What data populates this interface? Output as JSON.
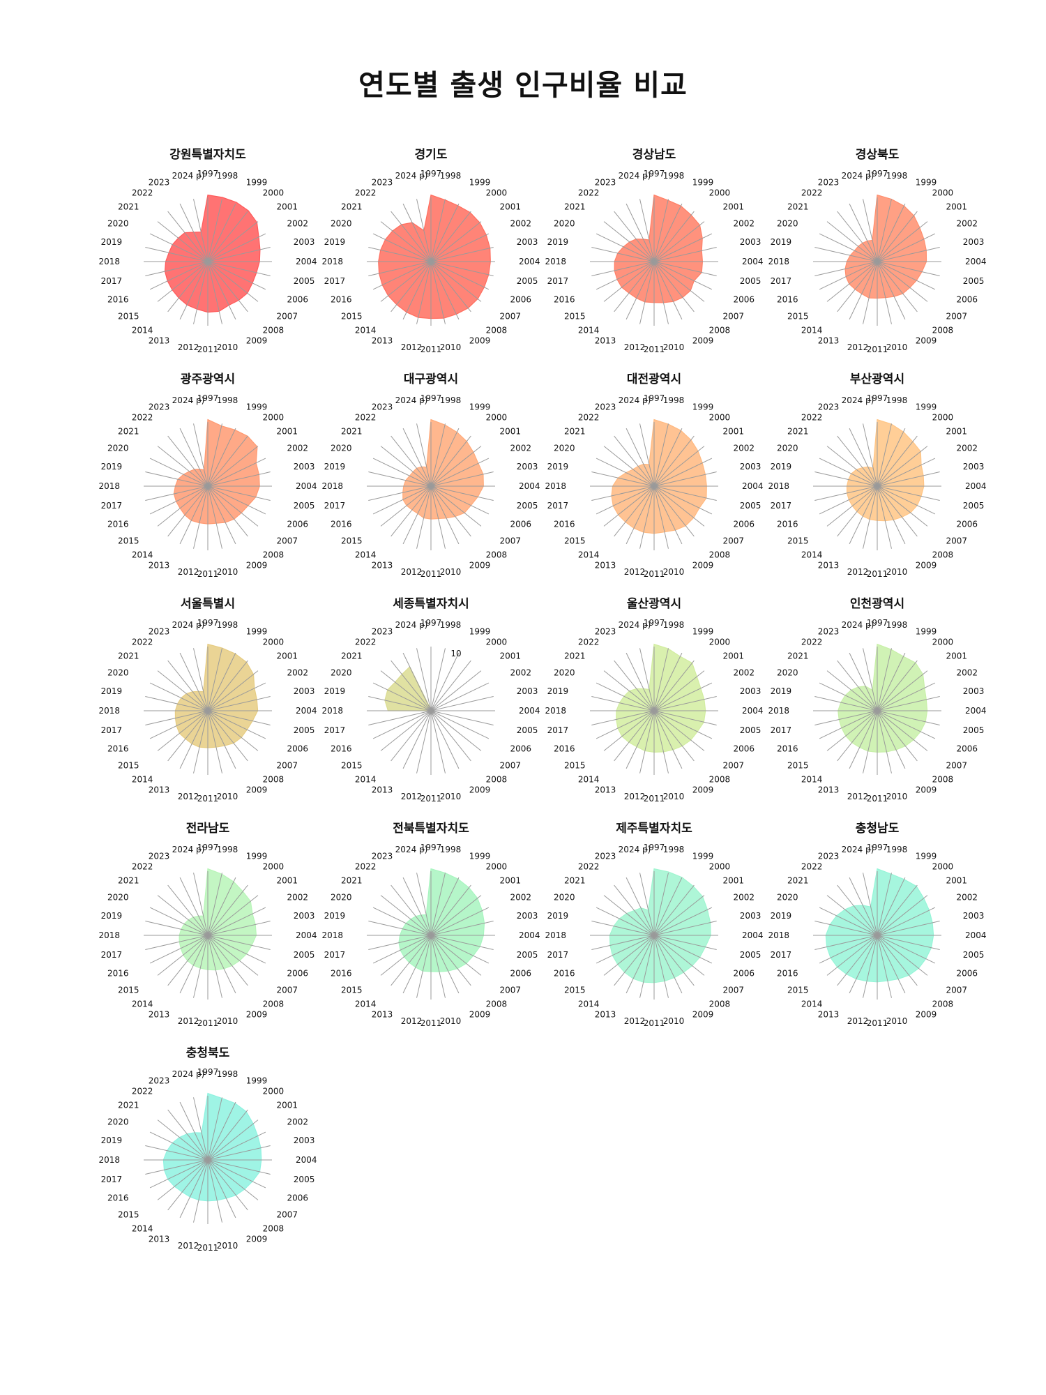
{
  "title": "연도별 출생 인구비율 비교",
  "years": [
    "1997",
    "1998",
    "1999",
    "2000",
    "2001",
    "2002",
    "2003",
    "2004",
    "2005",
    "2006",
    "2007",
    "2008",
    "2009",
    "2010",
    "2011",
    "2012",
    "2013",
    "2014",
    "2015",
    "2016",
    "2017",
    "2018",
    "2019",
    "2020",
    "2021",
    "2022",
    "2023",
    "2024 p)"
  ],
  "chart_data": {
    "type": "radar",
    "title": "연도별 출생 인구비율 비교",
    "ylim": [
      0,
      10
    ],
    "radial_tick_label": "10",
    "radial_tick_panel": "세종특별자치시",
    "categories": [
      "1997",
      "1998",
      "1999",
      "2000",
      "2001",
      "2002",
      "2003",
      "2004",
      "2005",
      "2006",
      "2007",
      "2008",
      "2009",
      "2010",
      "2011",
      "2012",
      "2013",
      "2014",
      "2015",
      "2016",
      "2017",
      "2018",
      "2019",
      "2020",
      "2021",
      "2022",
      "2023",
      "2024 p)"
    ],
    "panels": [
      {
        "name": "강원특별자치도",
        "color": "#ff5a5a",
        "values": [
          1.8,
          1.78,
          1.78,
          1.76,
          1.7,
          1.53,
          1.45,
          1.4,
          1.35,
          1.34,
          1.37,
          1.34,
          1.31,
          1.38,
          1.37,
          1.32,
          1.3,
          1.26,
          1.23,
          1.21,
          1.19,
          1.14,
          1.08,
          1.06,
          1.02,
          1.0,
          0.88,
          0.82
        ]
      },
      {
        "name": "경기도",
        "color": "#ff6e5f",
        "values": [
          1.8,
          1.71,
          1.68,
          1.7,
          1.69,
          1.66,
          1.64,
          1.61,
          1.6,
          1.6,
          1.62,
          1.61,
          1.58,
          1.57,
          1.54,
          1.55,
          1.52,
          1.49,
          1.48,
          1.46,
          1.44,
          1.42,
          1.4,
          1.37,
          1.33,
          1.28,
          1.17,
          0.86
        ]
      },
      {
        "name": "경상남도",
        "color": "#ff7f66",
        "values": [
          1.8,
          1.7,
          1.67,
          1.61,
          1.58,
          1.45,
          1.32,
          1.31,
          1.32,
          1.2,
          1.26,
          1.24,
          1.2,
          1.14,
          1.11,
          1.12,
          1.1,
          1.09,
          1.12,
          1.11,
          1.1,
          1.07,
          1.01,
          0.92,
          0.85,
          0.78,
          0.67,
          0.6
        ]
      },
      {
        "name": "경상북도",
        "color": "#ff8f6e",
        "values": [
          1.8,
          1.73,
          1.67,
          1.59,
          1.47,
          1.4,
          1.36,
          1.33,
          1.24,
          1.18,
          1.13,
          1.11,
          1.05,
          1.0,
          0.99,
          1.01,
          0.97,
          0.96,
          0.97,
          0.94,
          0.89,
          0.82,
          0.75,
          0.68,
          0.66,
          0.64,
          0.62,
          0.59
        ]
      },
      {
        "name": "광주광역시",
        "color": "#ff9a72",
        "values": [
          1.8,
          1.67,
          1.69,
          1.73,
          1.71,
          1.45,
          1.42,
          1.4,
          1.33,
          1.21,
          1.16,
          1.14,
          1.09,
          1.03,
          1.02,
          1.02,
          1.03,
          1.0,
          0.96,
          0.95,
          0.94,
          0.88,
          0.83,
          0.73,
          0.64,
          0.58,
          0.51,
          0.45
        ]
      },
      {
        "name": "대구광역시",
        "color": "#ffaa7a",
        "values": [
          1.8,
          1.7,
          1.62,
          1.55,
          1.47,
          1.42,
          1.45,
          1.42,
          1.3,
          1.2,
          1.16,
          1.05,
          0.96,
          0.9,
          0.89,
          0.88,
          0.82,
          0.82,
          0.84,
          0.84,
          0.78,
          0.74,
          0.7,
          0.64,
          0.62,
          0.62,
          0.58,
          0.53
        ]
      },
      {
        "name": "대전광역시",
        "color": "#ffb980",
        "values": [
          1.8,
          1.72,
          1.67,
          1.6,
          1.52,
          1.45,
          1.42,
          1.42,
          1.45,
          1.36,
          1.37,
          1.37,
          1.32,
          1.27,
          1.28,
          1.28,
          1.26,
          1.24,
          1.24,
          1.23,
          1.18,
          1.12,
          1.0,
          0.84,
          0.73,
          0.69,
          0.66,
          0.6
        ]
      },
      {
        "name": "부산광역시",
        "color": "#ffc585",
        "values": [
          1.8,
          1.72,
          1.63,
          1.54,
          1.5,
          1.32,
          1.28,
          1.26,
          1.22,
          1.2,
          1.15,
          1.07,
          1.01,
          0.96,
          0.93,
          0.92,
          0.9,
          0.88,
          0.86,
          0.85,
          0.84,
          0.82,
          0.8,
          0.78,
          0.72,
          0.64,
          0.58,
          0.5
        ]
      },
      {
        "name": "서울특별시",
        "color": "#e6cc82",
        "values": [
          1.8,
          1.74,
          1.71,
          1.68,
          1.58,
          1.4,
          1.36,
          1.35,
          1.24,
          1.18,
          1.16,
          1.12,
          1.05,
          1.01,
          1.0,
          1.01,
          0.99,
          0.97,
          0.98,
          0.94,
          0.9,
          0.88,
          0.84,
          0.8,
          0.74,
          0.66,
          0.58,
          0.53
        ]
      },
      {
        "name": "세종특별자치시",
        "color": "#dbdc92",
        "values": [
          0,
          0,
          0,
          0,
          0,
          0,
          0,
          0,
          0,
          0,
          0,
          0,
          0,
          0,
          0,
          0,
          0,
          0,
          0,
          0,
          0,
          5.8,
          6.4,
          6.5,
          6.2,
          6.3,
          6.6,
          0.3
        ]
      },
      {
        "name": "울산광역시",
        "color": "#d2eda0",
        "values": [
          1.8,
          1.72,
          1.63,
          1.65,
          1.48,
          1.4,
          1.39,
          1.39,
          1.38,
          1.3,
          1.27,
          1.22,
          1.17,
          1.14,
          1.12,
          1.11,
          1.08,
          1.09,
          1.11,
          1.09,
          1.05,
          1.02,
          0.96,
          0.9,
          0.86,
          0.76,
          0.66,
          0.59
        ]
      },
      {
        "name": "인천광역시",
        "color": "#c8f0a8",
        "values": [
          1.8,
          1.7,
          1.63,
          1.66,
          1.58,
          1.42,
          1.36,
          1.35,
          1.34,
          1.3,
          1.26,
          1.22,
          1.17,
          1.14,
          1.12,
          1.12,
          1.1,
          1.1,
          1.09,
          1.07,
          1.06,
          1.06,
          1.01,
          0.96,
          0.9,
          0.82,
          0.74,
          0.57
        ]
      },
      {
        "name": "전라남도",
        "color": "#b8f5b8",
        "values": [
          1.8,
          1.7,
          1.61,
          1.52,
          1.48,
          1.34,
          1.32,
          1.31,
          1.22,
          1.16,
          1.1,
          1.05,
          1.0,
          0.96,
          0.93,
          0.91,
          0.9,
          0.88,
          0.85,
          0.81,
          0.79,
          0.77,
          0.74,
          0.71,
          0.67,
          0.63,
          0.58,
          0.54
        ]
      },
      {
        "name": "전북특별자치도",
        "color": "#a8f5c0",
        "values": [
          1.8,
          1.73,
          1.69,
          1.65,
          1.61,
          1.54,
          1.48,
          1.42,
          1.36,
          1.27,
          1.22,
          1.15,
          1.07,
          1.01,
          0.98,
          0.99,
          0.96,
          0.94,
          0.93,
          0.92,
          0.89,
          0.84,
          0.79,
          0.75,
          0.7,
          0.66,
          0.61,
          0.57
        ]
      },
      {
        "name": "제주특별자치도",
        "color": "#a0f5d0",
        "values": [
          1.8,
          1.76,
          1.74,
          1.7,
          1.68,
          1.6,
          1.56,
          1.53,
          1.42,
          1.37,
          1.32,
          1.28,
          1.27,
          1.27,
          1.28,
          1.3,
          1.3,
          1.28,
          1.26,
          1.25,
          1.22,
          1.2,
          1.12,
          1.04,
          0.95,
          0.86,
          0.82,
          0.7
        ]
      },
      {
        "name": "충청남도",
        "color": "#96f5d8",
        "values": [
          1.8,
          1.7,
          1.68,
          1.7,
          1.61,
          1.56,
          1.53,
          1.52,
          1.5,
          1.46,
          1.43,
          1.38,
          1.31,
          1.26,
          1.26,
          1.27,
          1.31,
          1.34,
          1.38,
          1.4,
          1.4,
          1.39,
          1.31,
          1.22,
          1.12,
          1.02,
          0.9,
          0.79
        ]
      },
      {
        "name": "충청북도",
        "color": "#8ef2e0",
        "values": [
          1.8,
          1.71,
          1.7,
          1.67,
          1.57,
          1.5,
          1.47,
          1.45,
          1.44,
          1.34,
          1.27,
          1.22,
          1.15,
          1.12,
          1.11,
          1.11,
          1.11,
          1.11,
          1.15,
          1.2,
          1.21,
          1.2,
          1.13,
          1.06,
          0.98,
          0.9,
          0.82,
          0.75
        ]
      }
    ]
  }
}
